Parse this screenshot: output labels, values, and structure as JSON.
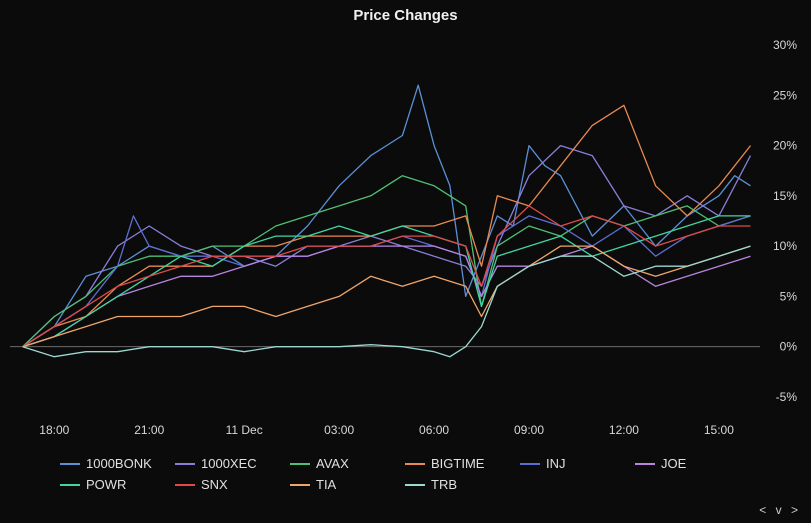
{
  "chart_data": {
    "type": "line",
    "title": "Price Changes",
    "xlabel": "",
    "ylabel": "",
    "x_tick_labels": [
      "18:00",
      "21:00",
      "11 Dec",
      "03:00",
      "06:00",
      "09:00",
      "12:00",
      "15:00"
    ],
    "x_ticks_hours": [
      1,
      4,
      7,
      10,
      13,
      16,
      19,
      22
    ],
    "x_range_hours": [
      -0.4,
      23.3
    ],
    "ylim": [
      -6,
      30
    ],
    "y_ticks": [
      -5,
      0,
      5,
      10,
      15,
      20,
      25,
      30
    ],
    "y_tick_labels": [
      "-5%",
      "0%",
      "5%",
      "10%",
      "15%",
      "20%",
      "25%",
      "30%"
    ],
    "zero_line": true,
    "series": [
      {
        "name": "1000BONK",
        "color": "#5b8fd6",
        "hours": [
          0,
          1,
          2,
          3,
          4,
          5,
          6,
          7,
          8,
          9,
          10,
          11,
          12,
          12.5,
          13,
          13.5,
          14,
          14.5,
          15,
          15.5,
          16,
          16.5,
          17,
          18,
          19,
          20,
          21,
          22,
          22.5,
          23
        ],
        "values": [
          0,
          2,
          7,
          8,
          10,
          9,
          10,
          8,
          9,
          12,
          16,
          19,
          21,
          26,
          20,
          16,
          5,
          9,
          13,
          12,
          20,
          18,
          17,
          11,
          14,
          10,
          13,
          15,
          17,
          16
        ]
      },
      {
        "name": "1000XEC",
        "color": "#8a7fd8",
        "hours": [
          0,
          1,
          2,
          3,
          4,
          5,
          6,
          7,
          8,
          9,
          10,
          11,
          12,
          13,
          14,
          14.5,
          15,
          16,
          17,
          18,
          19,
          20,
          21,
          22,
          23
        ],
        "values": [
          0,
          3,
          5,
          10,
          12,
          10,
          9,
          9,
          8,
          10,
          10,
          11,
          10,
          9,
          8,
          6,
          10,
          17,
          20,
          19,
          14,
          13,
          15,
          13,
          19
        ]
      },
      {
        "name": "AVAX",
        "color": "#4fbf73",
        "hours": [
          0,
          1,
          2,
          3,
          4,
          5,
          6,
          7,
          8,
          9,
          10,
          11,
          12,
          13,
          14,
          14.5,
          15,
          16,
          17,
          18,
          19,
          20,
          21,
          22,
          23
        ],
        "values": [
          0,
          3,
          5,
          8,
          9,
          9,
          10,
          10,
          12,
          13,
          14,
          15,
          17,
          16,
          14,
          4,
          10,
          12,
          11,
          13,
          12,
          13,
          14,
          12,
          13
        ]
      },
      {
        "name": "BIGTIME",
        "color": "#e8894f",
        "hours": [
          0,
          1,
          2,
          3,
          4,
          5,
          6,
          7,
          8,
          9,
          10,
          11,
          12,
          13,
          14,
          14.5,
          15,
          16,
          17,
          18,
          19,
          20,
          21,
          22,
          23
        ],
        "values": [
          0,
          2,
          3,
          6,
          8,
          8,
          8,
          10,
          10,
          11,
          11,
          11,
          12,
          12,
          13,
          8,
          15,
          14,
          18,
          22,
          24,
          16,
          13,
          16,
          20
        ]
      },
      {
        "name": "INJ",
        "color": "#5c6fd0",
        "hours": [
          0,
          1,
          2,
          3,
          3.5,
          4,
          5,
          6,
          7,
          8,
          9,
          10,
          11,
          12,
          13,
          14,
          14.5,
          15,
          16,
          17,
          18,
          19,
          20,
          21,
          22,
          23
        ],
        "values": [
          0,
          2,
          4,
          8,
          13,
          10,
          9,
          9,
          8,
          9,
          9,
          10,
          10,
          11,
          10,
          9,
          5,
          11,
          13,
          12,
          10,
          12,
          9,
          11,
          12,
          13
        ]
      },
      {
        "name": "JOE",
        "color": "#b884e0",
        "hours": [
          0,
          1,
          2,
          3,
          4,
          5,
          6,
          7,
          8,
          9,
          10,
          11,
          12,
          13,
          14,
          14.5,
          15,
          16,
          17,
          18,
          19,
          20,
          21,
          22,
          23
        ],
        "values": [
          0,
          1,
          3,
          5,
          6,
          7,
          7,
          8,
          9,
          9,
          10,
          10,
          10,
          10,
          9,
          5,
          8,
          8,
          9,
          10,
          8,
          6,
          7,
          8,
          9
        ]
      },
      {
        "name": "POWR",
        "color": "#3fd6a0",
        "hours": [
          0,
          1,
          2,
          3,
          4,
          5,
          6,
          7,
          8,
          9,
          10,
          11,
          12,
          13,
          14,
          14.5,
          15,
          16,
          17,
          18,
          19,
          20,
          21,
          22,
          23
        ],
        "values": [
          0,
          1,
          3,
          5,
          7,
          9,
          8,
          10,
          11,
          11,
          12,
          11,
          12,
          11,
          10,
          4,
          9,
          10,
          11,
          9,
          10,
          11,
          12,
          13,
          13
        ]
      },
      {
        "name": "SNX",
        "color": "#e04a4a",
        "hours": [
          0,
          1,
          2,
          3,
          4,
          5,
          6,
          7,
          8,
          9,
          10,
          11,
          12,
          13,
          14,
          14.5,
          15,
          16,
          17,
          18,
          19,
          20,
          21,
          22,
          23
        ],
        "values": [
          0,
          2,
          4,
          6,
          7,
          8,
          9,
          9,
          9,
          10,
          10,
          10,
          11,
          11,
          10,
          6,
          11,
          14,
          12,
          13,
          12,
          10,
          11,
          12,
          12
        ]
      },
      {
        "name": "TIA",
        "color": "#f0a56a",
        "hours": [
          0,
          1,
          2,
          3,
          4,
          5,
          6,
          7,
          8,
          9,
          10,
          11,
          12,
          13,
          14,
          14.5,
          15,
          16,
          17,
          18,
          19,
          20,
          21,
          22,
          23
        ],
        "values": [
          0,
          1,
          2,
          3,
          3,
          3,
          4,
          4,
          3,
          4,
          5,
          7,
          6,
          7,
          6,
          3,
          6,
          8,
          10,
          10,
          8,
          7,
          8,
          9,
          10
        ]
      },
      {
        "name": "TRB",
        "color": "#9bd8d0",
        "hours": [
          0,
          1,
          2,
          3,
          4,
          5,
          6,
          7,
          8,
          9,
          10,
          11,
          12,
          13,
          13.5,
          14,
          14.5,
          15,
          16,
          17,
          18,
          19,
          20,
          21,
          22,
          23
        ],
        "values": [
          0,
          -1,
          -0.5,
          -0.5,
          0,
          0,
          0,
          -0.5,
          0,
          0,
          0,
          0.2,
          0,
          -0.5,
          -1,
          0,
          2,
          6,
          8,
          9,
          9,
          7,
          8,
          8,
          9,
          10
        ]
      }
    ]
  },
  "nav": {
    "prev": "<",
    "down": "v",
    "next": ">"
  }
}
